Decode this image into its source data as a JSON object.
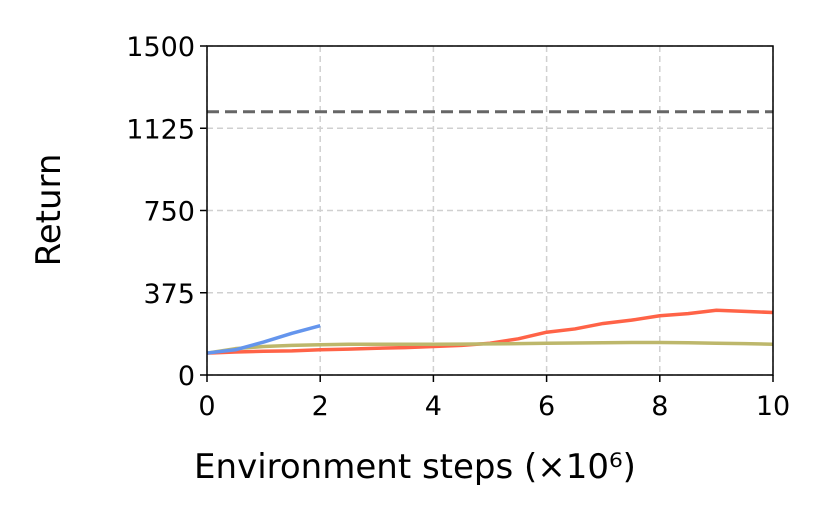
{
  "chart_data": {
    "type": "line",
    "xlabel": "Environment steps (×10⁶)",
    "ylabel": "Return",
    "x": [
      0,
      0.5,
      1,
      1.5,
      2,
      2.5,
      3,
      3.5,
      4,
      4.5,
      5,
      5.5,
      6,
      6.5,
      7,
      7.5,
      8,
      8.5,
      9,
      9.5,
      10
    ],
    "series": [
      {
        "color": "#ff6347",
        "values": [
          100,
          105,
          108,
          110,
          115,
          118,
          122,
          125,
          130,
          135,
          145,
          165,
          195,
          210,
          235,
          250,
          270,
          280,
          295,
          290,
          285
        ]
      },
      {
        "color": "#bdb76b",
        "values": [
          100,
          120,
          130,
          135,
          138,
          140,
          140,
          140,
          140,
          141,
          142,
          143,
          145,
          146,
          147,
          148,
          148,
          147,
          145,
          143,
          140
        ]
      },
      {
        "color": "#6495ed",
        "values": [
          100,
          115,
          150,
          190,
          225,
          null,
          null,
          null,
          null,
          null,
          null,
          null,
          null,
          null,
          null,
          null,
          null,
          null,
          null,
          null,
          null
        ]
      }
    ],
    "reference_line": {
      "value": 1200,
      "color": "#666666"
    },
    "xlim": [
      0,
      10
    ],
    "xticks": [
      0,
      2,
      4,
      6,
      8,
      10
    ],
    "ylim": [
      0,
      1500
    ],
    "yticks": [
      0,
      375,
      750,
      1125,
      1500
    ],
    "grid": true
  }
}
